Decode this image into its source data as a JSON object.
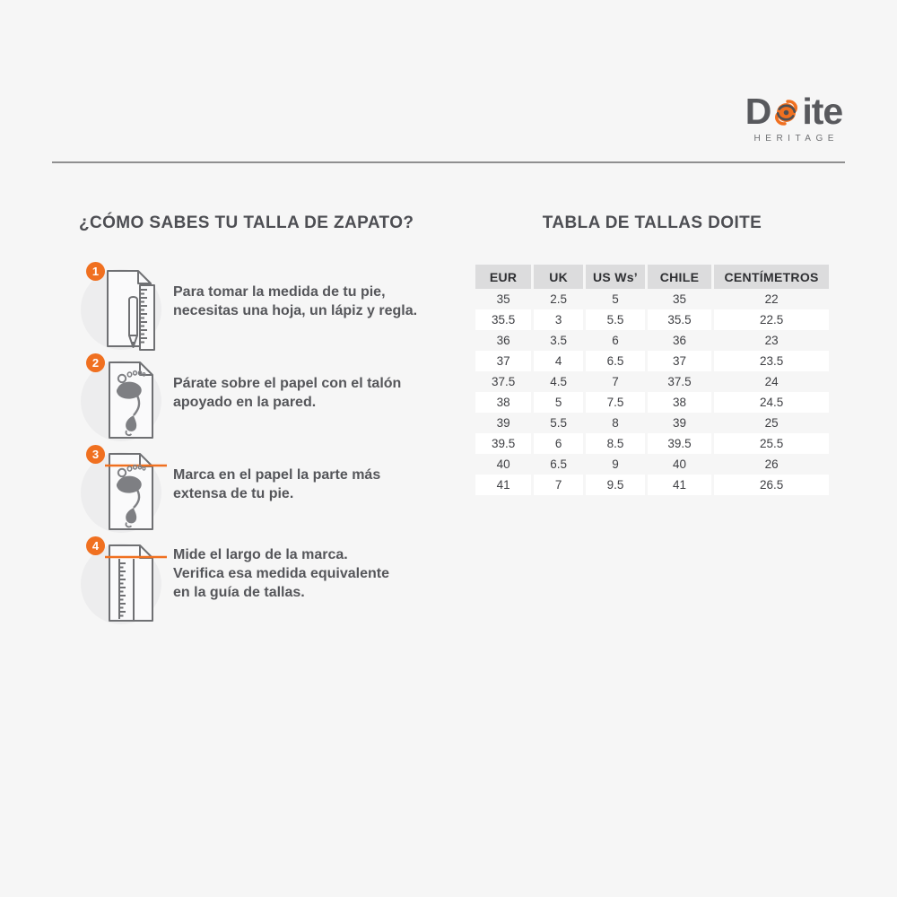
{
  "brand": {
    "name_prefix": "D",
    "name_suffix": "ite",
    "swirl_icon": "orange-swirl-icon",
    "tagline": "HERITAGE"
  },
  "left": {
    "title": "¿CÓMO SABES TU TALLA DE ZAPATO?",
    "steps": [
      {
        "number": "1",
        "icon": "paper-pencil-ruler-icon",
        "text": "Para tomar la medida de tu pie,\nnecesitas una hoja, un lápiz y regla."
      },
      {
        "number": "2",
        "icon": "paper-footprint-icon",
        "text": "Párate sobre el papel con el talón\napoyado en la pared."
      },
      {
        "number": "3",
        "icon": "paper-footprint-markline-icon",
        "text": "Marca en el papel la parte más\nextensa de tu pie."
      },
      {
        "number": "4",
        "icon": "paper-ruler-measureline-icon",
        "text": "Mide el largo de la marca.\nVerifica esa medida equivalente\nen la guía de tallas."
      }
    ]
  },
  "size_table": {
    "title": "TABLA DE TALLAS DOITE",
    "headers": [
      "EUR",
      "UK",
      "US Ws’",
      "CHILE",
      "CENTÍMETROS"
    ],
    "rows": [
      [
        "35",
        "2.5",
        "5",
        "35",
        "22"
      ],
      [
        "35.5",
        "3",
        "5.5",
        "35.5",
        "22.5"
      ],
      [
        "36",
        "3.5",
        "6",
        "36",
        "23"
      ],
      [
        "37",
        "4",
        "6.5",
        "37",
        "23.5"
      ],
      [
        "37.5",
        "4.5",
        "7",
        "37.5",
        "24"
      ],
      [
        "38",
        "5",
        "7.5",
        "38",
        "24.5"
      ],
      [
        "39",
        "5.5",
        "8",
        "39",
        "25"
      ],
      [
        "39.5",
        "6",
        "8.5",
        "39.5",
        "25.5"
      ],
      [
        "40",
        "6.5",
        "9",
        "40",
        "26"
      ],
      [
        "41",
        "7",
        "9.5",
        "41",
        "26.5"
      ]
    ]
  },
  "colors": {
    "accent_orange": "#F07020",
    "text_dark": "#55565A",
    "heading": "#4D4E53",
    "table_header_bg": "#DCDCDD",
    "page_bg": "#F6F6F6",
    "divider": "#8F8F90"
  }
}
